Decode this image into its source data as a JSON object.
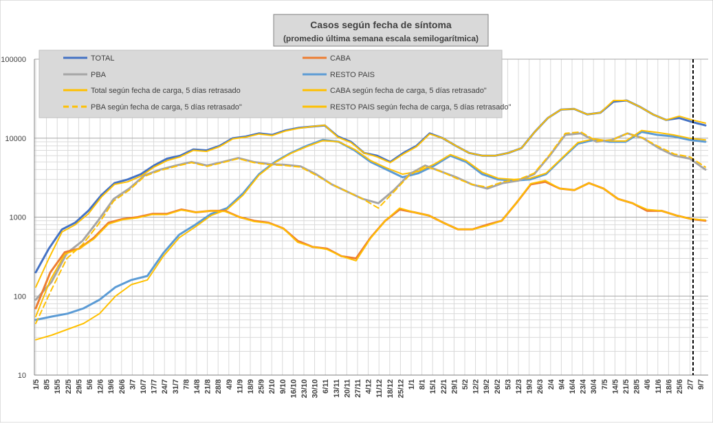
{
  "chart_data": {
    "type": "line",
    "title": "Casos según fecha de síntoma",
    "subtitle": "(promedio última semana escala semilogarítmica)",
    "y_scale": "log",
    "ylim": [
      10,
      100000
    ],
    "y_ticks": [
      "10",
      "100",
      "1000",
      "10000",
      "100000"
    ],
    "grid": true,
    "legend_position": "top-left",
    "vertical_marker": "8/7",
    "x_labels": [
      "1/5",
      "8/5",
      "15/5",
      "22/5",
      "29/5",
      "5/6",
      "12/6",
      "19/6",
      "26/6",
      "3/7",
      "10/7",
      "17/7",
      "24/7",
      "31/7",
      "7/8",
      "14/8",
      "21/8",
      "28/8",
      "4/9",
      "11/9",
      "18/9",
      "25/9",
      "2/10",
      "9/10",
      "16/10",
      "23/10",
      "30/10",
      "6/11",
      "13/11",
      "20/11",
      "27/11",
      "4/12",
      "11/12",
      "18/12",
      "25/12",
      "1/1",
      "8/1",
      "15/1",
      "22/1",
      "29/1",
      "5/2",
      "12/2",
      "19/2",
      "26/2",
      "5/3",
      "12/3",
      "19/3",
      "26/3",
      "2/4",
      "9/4",
      "16/4",
      "23/4",
      "30/4",
      "7/5",
      "14/5",
      "21/5",
      "28/5",
      "4/6",
      "11/6",
      "18/6",
      "25/6",
      "2/7",
      "9/7"
    ],
    "series": [
      {
        "name": "TOTAL",
        "color": "#4472c4",
        "dash": false,
        "width": 3,
        "values": [
          200,
          400,
          700,
          850,
          1200,
          1900,
          2700,
          3000,
          3500,
          4500,
          5500,
          6000,
          7200,
          7000,
          8000,
          10000,
          10500,
          11500,
          11000,
          12500,
          13500,
          14000,
          14500,
          10500,
          9000,
          6500,
          6000,
          5000,
          6500,
          8000,
          11500,
          10000,
          8000,
          6500,
          6000,
          6000,
          6500,
          7500,
          12000,
          18000,
          23000,
          23500,
          20000,
          21000,
          29000,
          30000,
          25000,
          20000,
          17000,
          18000,
          16000,
          14500
        ]
      },
      {
        "name": "CABA",
        "color": "#ed7d31",
        "dash": false,
        "width": 3,
        "values": [
          70,
          200,
          360,
          400,
          550,
          850,
          950,
          1000,
          1100,
          1100,
          1250,
          1150,
          1200,
          1200,
          1000,
          900,
          850,
          720,
          500,
          420,
          400,
          320,
          300,
          550,
          900,
          1250,
          1150,
          1050,
          850,
          700,
          700,
          800,
          900,
          1500,
          2600,
          2800,
          2300,
          2200,
          2700,
          2300,
          1700,
          1500,
          1200,
          1200,
          1050,
          950,
          900
        ]
      },
      {
        "name": "PBA",
        "color": "#a5a5a5",
        "dash": false,
        "width": 3,
        "values": [
          90,
          150,
          350,
          500,
          900,
          1700,
          2300,
          3400,
          4000,
          4500,
          5000,
          4500,
          5000,
          5600,
          5000,
          4700,
          4600,
          4400,
          3500,
          2600,
          2100,
          1700,
          1500,
          2200,
          3500,
          4500,
          3800,
          3200,
          2600,
          2300,
          2700,
          2900,
          3500,
          6000,
          11000,
          11500,
          9000,
          9500,
          11500,
          10000,
          7500,
          6000,
          5500,
          4000
        ]
      },
      {
        "name": "RESTO PAIS",
        "color": "#5b9bd5",
        "dash": false,
        "width": 3,
        "values": [
          50,
          55,
          60,
          70,
          90,
          130,
          160,
          180,
          350,
          600,
          800,
          1100,
          1300,
          2000,
          3500,
          5000,
          6500,
          8000,
          9500,
          9000,
          7000,
          5000,
          4000,
          3200,
          3600,
          4500,
          6000,
          5000,
          3500,
          3000,
          2900,
          3000,
          3500,
          5500,
          8500,
          9500,
          9000,
          9000,
          12000,
          11000,
          10500,
          9500,
          9000
        ]
      },
      {
        "name": "Total según fecha de carga, 5 días retrasado",
        "color": "#ffc000",
        "dash": false,
        "width": 2,
        "values": [
          130,
          300,
          650,
          800,
          1100,
          1800,
          2600,
          2800,
          3300,
          4300,
          5200,
          5800,
          7000,
          6800,
          7800,
          9800,
          10300,
          11300,
          10800,
          12300,
          13300,
          14000,
          14600,
          10300,
          8800,
          6500,
          5800,
          4900,
          6300,
          7800,
          11300,
          10000,
          8000,
          6500,
          6000,
          6000,
          6500,
          7500,
          12000,
          18000,
          23000,
          23500,
          20000,
          21000,
          30000,
          30000,
          25000,
          20000,
          17000,
          19000,
          17000,
          15500
        ]
      },
      {
        "name": "CABA según fecha de carga, 5 días retrasado\"",
        "color": "#ffc000",
        "dash": false,
        "width": 2,
        "values": [
          55,
          160,
          340,
          400,
          530,
          820,
          930,
          980,
          1080,
          1080,
          1230,
          1150,
          1200,
          1180,
          1000,
          880,
          840,
          720,
          480,
          420,
          390,
          320,
          280,
          540,
          900,
          1300,
          1150,
          1050,
          850,
          700,
          700,
          780,
          900,
          1500,
          2650,
          2900,
          2300,
          2200,
          2700,
          2300,
          1700,
          1500,
          1250,
          1200,
          1050,
          950,
          920
        ]
      },
      {
        "name": "PBA según fecha de carga, 5 días retrasado\"",
        "color": "#ffc000",
        "dash": true,
        "width": 2,
        "values": [
          45,
          120,
          300,
          450,
          800,
          1600,
          2200,
          3300,
          3900,
          4400,
          4900,
          4400,
          4900,
          5500,
          4900,
          4600,
          4500,
          4300,
          3400,
          2600,
          2100,
          1700,
          1300,
          2100,
          3400,
          4400,
          3800,
          3100,
          2600,
          2400,
          2800,
          3000,
          3600,
          6200,
          11500,
          12000,
          9200,
          9500,
          11500,
          10000,
          7800,
          6300,
          5800,
          4300
        ]
      },
      {
        "name": "RESTO PAIS según fecha de carga, 5 días retrasado\"",
        "color": "#ffc000",
        "dash": false,
        "width": 2,
        "values": [
          28,
          32,
          38,
          45,
          60,
          100,
          140,
          160,
          320,
          550,
          750,
          1050,
          1250,
          1900,
          3400,
          4900,
          6400,
          7800,
          9300,
          9000,
          7200,
          5200,
          4200,
          3500,
          3800,
          4700,
          6200,
          5200,
          3700,
          3100,
          3000,
          3100,
          3600,
          5600,
          8800,
          9800,
          9200,
          9200,
          12500,
          11800,
          11000,
          10000,
          9500
        ]
      }
    ]
  }
}
